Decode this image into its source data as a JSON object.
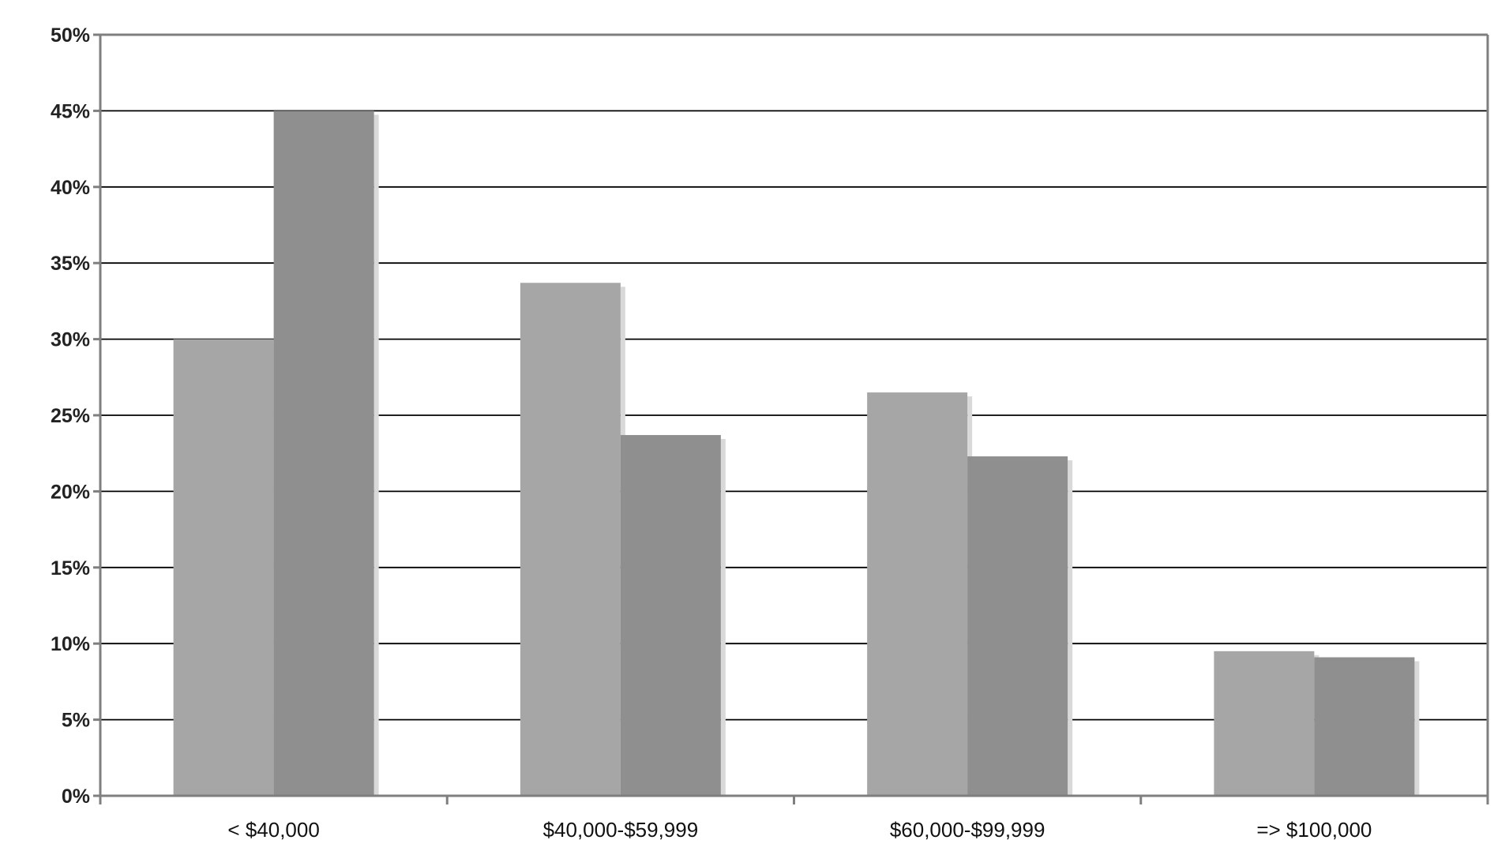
{
  "chart_data": {
    "type": "bar",
    "title": "",
    "xlabel": "",
    "ylabel": "",
    "categories": [
      "< $40,000",
      "$40,000-$59,999",
      "$60,000-$99,999",
      "=> $100,000"
    ],
    "series": [
      {
        "values": [
          30,
          33.7,
          26.5,
          9.5
        ]
      },
      {
        "values": [
          45,
          23.7,
          22.3,
          9.1
        ]
      }
    ],
    "ylim": [
      0,
      50
    ],
    "y_ticks": [
      0,
      5,
      10,
      15,
      20,
      25,
      30,
      35,
      40,
      45,
      50
    ],
    "y_tick_labels": [
      "0%",
      "5%",
      "10%",
      "15%",
      "20%",
      "25%",
      "30%",
      "35%",
      "40%",
      "45%",
      "50%"
    ],
    "grid": true,
    "legend": "none",
    "colors": {
      "series_1": "#a6a6a6",
      "series_2": "#8f8f8f",
      "gridline": "#000000",
      "axis": "#7f7f7f",
      "background": "#ffffff"
    }
  }
}
